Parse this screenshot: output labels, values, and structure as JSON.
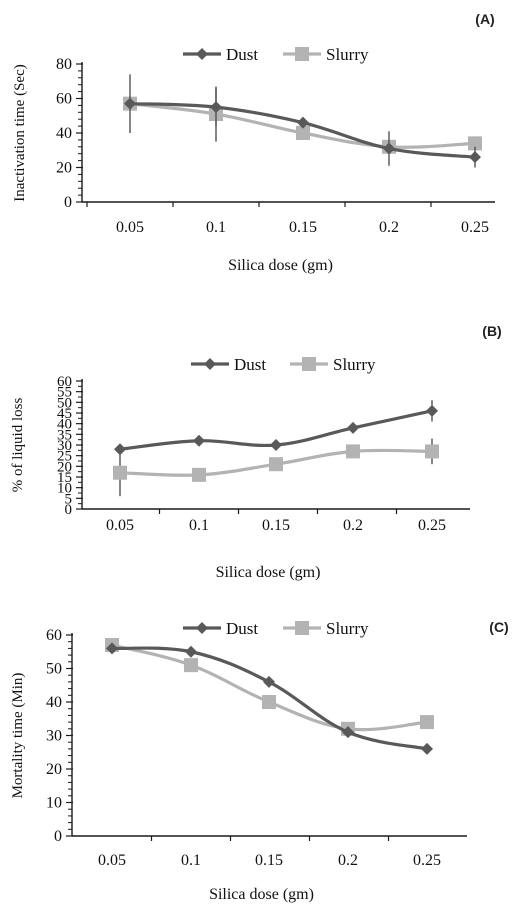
{
  "figure": {
    "colors": {
      "dust": "#595959",
      "slurry": "#b3b3b3",
      "axis": "#1a1a1a",
      "error": "#444444"
    }
  },
  "chart_data": [
    {
      "type": "line",
      "panel_label": "(A)",
      "title": "",
      "categories": [
        "0.05",
        "0.1",
        "0.15",
        "0.2",
        "0.25"
      ],
      "xlabel": "Silica dose (gm)",
      "ylabel": "Inactivation time (Sec)",
      "ylim": [
        0,
        80
      ],
      "yticks": [
        "0",
        "20",
        "40",
        "60",
        "80"
      ],
      "legend": "top",
      "series": [
        {
          "name": "Dust",
          "marker": "diamond",
          "values": [
            57,
            55,
            46,
            31,
            26
          ],
          "err": [
            17,
            11,
            0,
            10,
            6
          ]
        },
        {
          "name": "Slurry",
          "marker": "square",
          "values": [
            57,
            51,
            40,
            32,
            34
          ],
          "err": [
            0,
            16,
            0,
            0,
            0
          ]
        }
      ]
    },
    {
      "type": "line",
      "panel_label": "(B)",
      "title": "",
      "categories": [
        "0.05",
        "0.1",
        "0.15",
        "0.2",
        "0.25"
      ],
      "xlabel": "Silica dose (gm)",
      "ylabel": "% of liquid loss",
      "ylim": [
        0,
        60
      ],
      "yticks": [
        "0",
        "5",
        "10",
        "15",
        "20",
        "25",
        "30",
        "35",
        "40",
        "45",
        "50",
        "55",
        "60"
      ],
      "legend": "top",
      "series": [
        {
          "name": "Dust",
          "marker": "diamond",
          "values": [
            28,
            32,
            30,
            38,
            46
          ],
          "err": [
            0,
            0,
            0,
            0,
            5
          ]
        },
        {
          "name": "Slurry",
          "marker": "square",
          "values": [
            17,
            16,
            21,
            27,
            27
          ],
          "err": [
            11,
            0,
            0,
            0,
            6
          ]
        }
      ]
    },
    {
      "type": "line",
      "panel_label": "(C)",
      "title": "",
      "categories": [
        "0.05",
        "0.1",
        "0.15",
        "0.2",
        "0.25"
      ],
      "xlabel": "Silica dose (gm)",
      "ylabel": "Mortality time (Min)",
      "ylim": [
        0,
        60
      ],
      "yticks": [
        "0",
        "10",
        "20",
        "30",
        "40",
        "50",
        "60"
      ],
      "legend": "top",
      "series": [
        {
          "name": "Dust",
          "marker": "diamond",
          "values": [
            56,
            55,
            46,
            31,
            26
          ],
          "err": [
            0,
            0,
            0,
            0,
            0
          ]
        },
        {
          "name": "Slurry",
          "marker": "square",
          "values": [
            57,
            51,
            40,
            32,
            34
          ],
          "err": [
            0,
            0,
            0,
            0,
            0
          ]
        }
      ]
    }
  ]
}
